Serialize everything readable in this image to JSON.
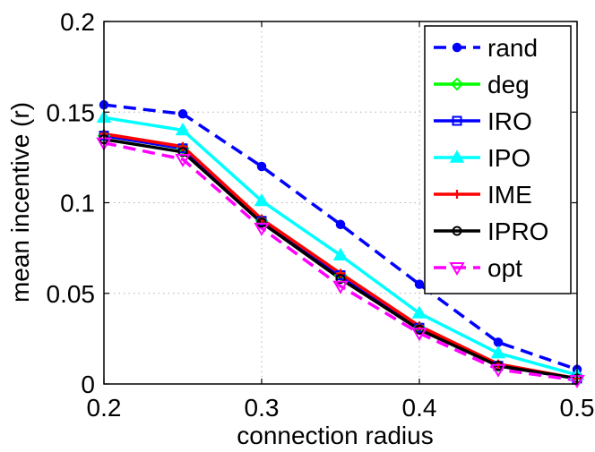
{
  "chart_data": {
    "type": "line",
    "title": "",
    "xlabel": "connection radius",
    "ylabel": "mean incentive (r)",
    "x": [
      0.2,
      0.25,
      0.3,
      0.35,
      0.4,
      0.45,
      0.5
    ],
    "xlim": [
      0.2,
      0.5
    ],
    "ylim": [
      0,
      0.2
    ],
    "xticks": [
      0.2,
      0.3,
      0.4,
      0.5
    ],
    "xtick_labels": [
      "0.2",
      "0.3",
      "0.4",
      "0.5"
    ],
    "yticks": [
      0,
      0.05,
      0.1,
      0.15,
      0.2
    ],
    "ytick_labels": [
      "0",
      "0.05",
      "0.1",
      "0.15",
      "0.2"
    ],
    "grid": true,
    "legend_position": "top-right",
    "series": [
      {
        "name": "rand",
        "color": "#0000ff",
        "marker": "circle",
        "dashed": true,
        "values": [
          0.154,
          0.149,
          0.12,
          0.088,
          0.055,
          0.023,
          0.008
        ]
      },
      {
        "name": "deg",
        "color": "#00ff00",
        "marker": "diamond",
        "dashed": false,
        "values": [
          0.137,
          0.13,
          0.09,
          0.06,
          0.031,
          0.01,
          0.003
        ]
      },
      {
        "name": "IRO",
        "color": "#0000ff",
        "marker": "square",
        "dashed": false,
        "values": [
          0.137,
          0.13,
          0.09,
          0.06,
          0.031,
          0.01,
          0.003
        ]
      },
      {
        "name": "IPO",
        "color": "#00ffff",
        "marker": "triangle-up",
        "dashed": false,
        "values": [
          0.147,
          0.14,
          0.101,
          0.071,
          0.039,
          0.017,
          0.005
        ]
      },
      {
        "name": "IME",
        "color": "#ff0000",
        "marker": "plus",
        "dashed": false,
        "values": [
          0.138,
          0.131,
          0.091,
          0.061,
          0.032,
          0.011,
          0.003
        ]
      },
      {
        "name": "IPRO",
        "color": "#000000",
        "marker": "circle-open",
        "dashed": false,
        "values": [
          0.135,
          0.128,
          0.089,
          0.058,
          0.03,
          0.01,
          0.003
        ]
      },
      {
        "name": "opt",
        "color": "#ff00ff",
        "marker": "triangle-down",
        "dashed": true,
        "values": [
          0.133,
          0.124,
          0.086,
          0.054,
          0.028,
          0.008,
          0.002
        ]
      }
    ]
  }
}
